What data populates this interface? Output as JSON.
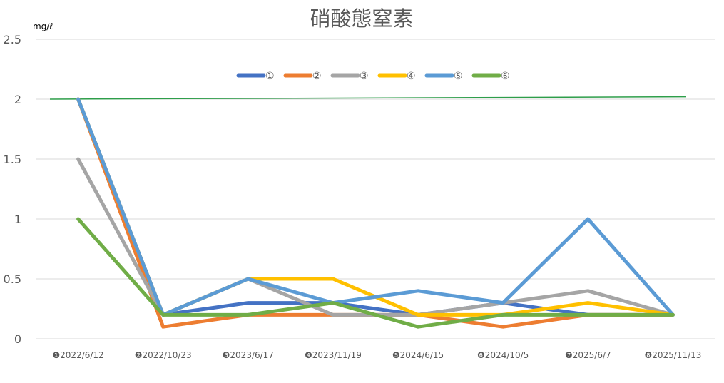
{
  "chart_data": {
    "type": "line",
    "title": "硝酸態窒素",
    "ylabel": "mg/ℓ",
    "xlabel": "",
    "ylim": [
      0,
      2.5
    ],
    "yticks": [
      "0",
      "0.5",
      "1",
      "1.5",
      "2",
      "2.5"
    ],
    "grid": true,
    "legend": "top-center",
    "categories": [
      "❶2022/6/12",
      "❷2022/10/23",
      "❸2023/6/17",
      "❹2023/11/19",
      "❺2024/6/15",
      "❻2024/10/5",
      "❼2025/6/7",
      "❽2025/11/13"
    ],
    "series": [
      {
        "name": "①",
        "color": "#4472C4",
        "values": [
          2,
          0.2,
          0.3,
          0.3,
          0.2,
          0.3,
          0.2,
          0.2
        ]
      },
      {
        "name": "②",
        "color": "#ED7D31",
        "values": [
          2,
          0.1,
          0.2,
          0.2,
          0.2,
          0.1,
          0.2,
          0.2
        ]
      },
      {
        "name": "③",
        "color": "#A5A5A5",
        "values": [
          1.5,
          0.2,
          0.5,
          0.2,
          0.2,
          0.3,
          0.4,
          0.2
        ]
      },
      {
        "name": "④",
        "color": "#FFC000",
        "values": [
          2,
          0.2,
          0.5,
          0.5,
          0.2,
          0.2,
          0.3,
          0.2
        ]
      },
      {
        "name": "⑤",
        "color": "#5B9BD5",
        "values": [
          2,
          0.2,
          0.5,
          0.3,
          0.4,
          0.3,
          1,
          0.2
        ]
      },
      {
        "name": "⑥",
        "color": "#70AD47",
        "values": [
          1,
          0.2,
          0.2,
          0.3,
          0.1,
          0.2,
          0.2,
          0.2
        ]
      }
    ],
    "reference_line": {
      "color": "#2E9E4A",
      "y_start": 2,
      "y_end": 2.02
    }
  }
}
